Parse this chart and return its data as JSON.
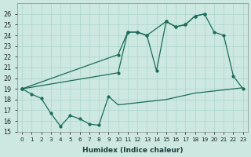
{
  "xlabel": "Humidex (Indice chaleur)",
  "bg_color": "#cce8e0",
  "grid_color": "#aad4cc",
  "line_color": "#1a6b5a",
  "xlim": [
    -0.5,
    23.5
  ],
  "ylim": [
    15,
    27
  ],
  "yticks": [
    15,
    16,
    17,
    18,
    19,
    20,
    21,
    22,
    23,
    24,
    25,
    26
  ],
  "xticks": [
    0,
    1,
    2,
    3,
    4,
    5,
    6,
    7,
    8,
    9,
    10,
    11,
    12,
    13,
    14,
    15,
    16,
    17,
    18,
    19,
    20,
    21,
    22,
    23
  ],
  "line1_x": [
    0,
    1,
    2,
    3,
    4,
    5,
    6,
    7,
    8,
    9,
    10,
    11,
    12,
    13,
    14,
    15,
    16,
    17,
    18,
    19,
    20,
    21,
    22,
    23
  ],
  "line1_y": [
    19.0,
    18.5,
    18.1,
    16.7,
    15.5,
    16.5,
    16.2,
    15.7,
    15.6,
    18.3,
    17.5,
    17.6,
    17.7,
    17.8,
    17.9,
    18.0,
    18.2,
    18.4,
    18.6,
    18.7,
    18.8,
    18.9,
    19.0,
    19.1
  ],
  "line2_x": [
    0,
    10,
    11,
    12,
    13,
    14,
    15,
    16,
    17,
    18,
    19,
    20,
    21,
    22,
    23
  ],
  "line2_y": [
    19.0,
    22.2,
    24.3,
    24.3,
    24.0,
    20.7,
    25.3,
    24.8,
    25.0,
    25.8,
    26.0,
    24.3,
    24.0,
    20.2,
    19.0
  ],
  "line3_x": [
    0,
    10,
    11,
    12,
    13,
    15,
    16,
    17,
    18,
    19
  ],
  "line3_y": [
    19.0,
    20.5,
    24.3,
    24.3,
    24.0,
    25.3,
    24.8,
    25.0,
    25.8,
    26.0
  ]
}
